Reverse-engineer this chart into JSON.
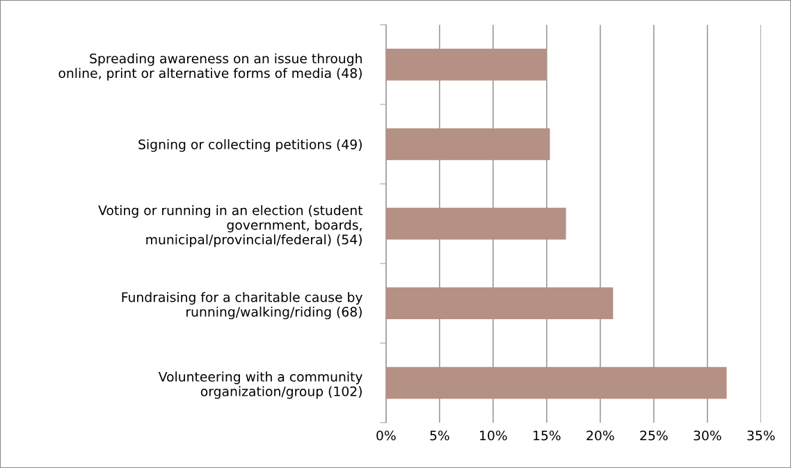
{
  "chart_data": {
    "type": "bar",
    "orientation": "horizontal",
    "categories": [
      "Spreading awareness on an issue through\nonline, print or alternative forms of media (48)",
      "Signing or collecting petitions (49)",
      "Voting or running in an election (student\ngovernment, boards,\nmunicipal/provincial/federal) (54)",
      "Fundraising for a charitable cause by\nrunning/walking/riding (68)",
      "Volunteering with a community\norganization/group (102)"
    ],
    "values": [
      15.0,
      15.3,
      16.8,
      21.2,
      31.8
    ],
    "color": "#b59085",
    "xlim": [
      0,
      35
    ],
    "xticks": [
      {
        "value": 0,
        "label": "0%"
      },
      {
        "value": 5,
        "label": "5%"
      },
      {
        "value": 10,
        "label": "10%"
      },
      {
        "value": 15,
        "label": "15%"
      },
      {
        "value": 20,
        "label": "20%"
      },
      {
        "value": 25,
        "label": "25%"
      },
      {
        "value": 30,
        "label": "30%"
      },
      {
        "value": 35,
        "label": "35%"
      }
    ],
    "grid": "x"
  }
}
